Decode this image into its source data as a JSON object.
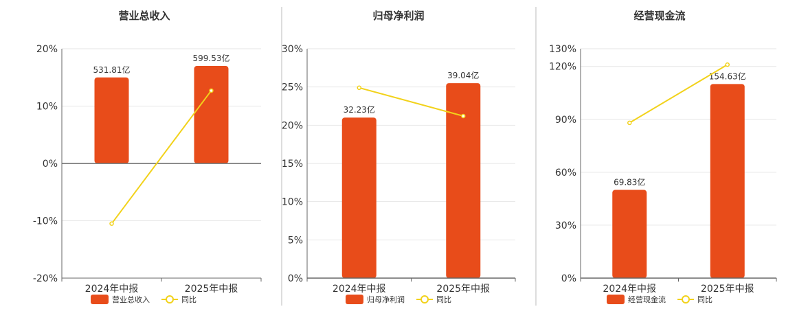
{
  "colors": {
    "bar": "#e84c1a",
    "line": "#f2d21b",
    "grid": "#e6e6e6",
    "axis": "#666666",
    "divider": "#bbbbbb",
    "text": "#333333"
  },
  "legend": {
    "yoy_label": "同比"
  },
  "chart_data": [
    {
      "type": "bar",
      "title": "营业总收入",
      "categories": [
        "2024年中报",
        "2025年中报"
      ],
      "series": [
        {
          "name": "营业总收入",
          "type": "bar",
          "labels": [
            "531.81亿",
            "599.53亿"
          ],
          "values": [
            15,
            17
          ]
        },
        {
          "name": "同比",
          "type": "line",
          "values": [
            -10.5,
            12.7
          ]
        }
      ],
      "ylim": [
        -20,
        20
      ],
      "yticks": [
        20,
        10,
        0,
        -10,
        -20
      ],
      "ytick_labels": [
        "20%",
        "10%",
        "0%",
        "-10%",
        "-20%"
      ],
      "grid": true,
      "legend_position": "bottom"
    },
    {
      "type": "bar",
      "title": "归母净利润",
      "categories": [
        "2024年中报",
        "2025年中报"
      ],
      "series": [
        {
          "name": "归母净利润",
          "type": "bar",
          "labels": [
            "32.23亿",
            "39.04亿"
          ],
          "values": [
            21,
            25.5
          ]
        },
        {
          "name": "同比",
          "type": "line",
          "values": [
            24.9,
            21.2
          ]
        }
      ],
      "ylim": [
        0,
        30
      ],
      "yticks": [
        30,
        25,
        20,
        15,
        10,
        5,
        0
      ],
      "ytick_labels": [
        "30%",
        "25%",
        "20%",
        "15%",
        "10%",
        "5%",
        "0%"
      ],
      "grid": true,
      "legend_position": "bottom"
    },
    {
      "type": "bar",
      "title": "经营现金流",
      "categories": [
        "2024年中报",
        "2025年中报"
      ],
      "series": [
        {
          "name": "经营现金流",
          "type": "bar",
          "labels": [
            "69.83亿",
            "154.63亿"
          ],
          "values": [
            50,
            110
          ]
        },
        {
          "name": "同比",
          "type": "line",
          "values": [
            88,
            121
          ]
        }
      ],
      "ylim": [
        0,
        130
      ],
      "yticks": [
        130,
        120,
        90,
        60,
        30,
        0
      ],
      "ytick_labels": [
        "130%",
        "120%",
        "90%",
        "60%",
        "30%",
        "0%"
      ],
      "grid": true,
      "legend_position": "bottom"
    }
  ]
}
